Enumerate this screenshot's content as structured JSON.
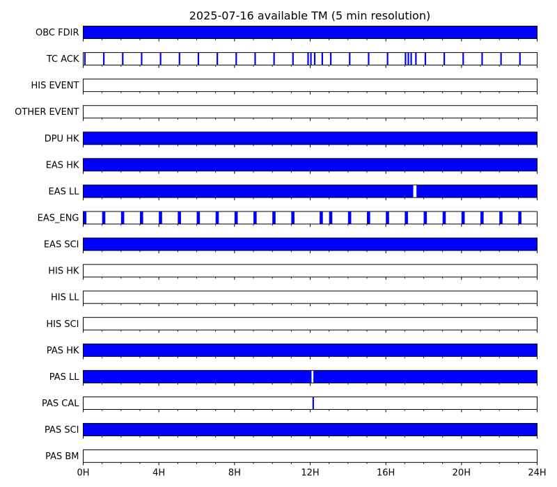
{
  "chart_data": {
    "type": "timeline",
    "title": "2025-07-16 available TM (5 min resolution)",
    "x_unit": "hours",
    "xlim": [
      0,
      24
    ],
    "x_ticks": [
      {
        "value": 0,
        "label": "0H"
      },
      {
        "value": 4,
        "label": "4H"
      },
      {
        "value": 8,
        "label": "8H"
      },
      {
        "value": 12,
        "label": "12H"
      },
      {
        "value": 16,
        "label": "16H"
      },
      {
        "value": 20,
        "label": "20H"
      },
      {
        "value": 24,
        "label": "24H"
      }
    ],
    "minor_tick_step": 1,
    "bar_color": "#0000ff",
    "gap_color": "#ffffff",
    "rows": [
      {
        "label": "OBC FDIR",
        "intervals": [
          [
            0,
            24
          ]
        ]
      },
      {
        "label": "TC ACK",
        "intervals": [
          [
            0.05,
            0.13
          ],
          [
            1.05,
            1.13
          ],
          [
            2.05,
            2.13
          ],
          [
            3.05,
            3.13
          ],
          [
            4.05,
            4.13
          ],
          [
            5.05,
            5.13
          ],
          [
            6.05,
            6.13
          ],
          [
            7.05,
            7.13
          ],
          [
            8.05,
            8.13
          ],
          [
            9.05,
            9.13
          ],
          [
            10.05,
            10.13
          ],
          [
            11.05,
            11.13
          ],
          [
            11.85,
            11.93
          ],
          [
            12.0,
            12.08
          ],
          [
            12.2,
            12.28
          ],
          [
            12.6,
            12.68
          ],
          [
            13.05,
            13.13
          ],
          [
            14.05,
            14.13
          ],
          [
            15.05,
            15.13
          ],
          [
            16.05,
            16.13
          ],
          [
            17.0,
            17.08
          ],
          [
            17.15,
            17.23
          ],
          [
            17.3,
            17.38
          ],
          [
            17.55,
            17.63
          ],
          [
            18.05,
            18.13
          ],
          [
            19.05,
            19.13
          ],
          [
            20.05,
            20.13
          ],
          [
            21.05,
            21.13
          ],
          [
            22.05,
            22.13
          ],
          [
            23.05,
            23.13
          ]
        ]
      },
      {
        "label": "HIS EVENT",
        "intervals": []
      },
      {
        "label": "OTHER EVENT",
        "intervals": []
      },
      {
        "label": "DPU HK",
        "intervals": [
          [
            0,
            24
          ]
        ]
      },
      {
        "label": "EAS HK",
        "intervals": [
          [
            0,
            24
          ]
        ]
      },
      {
        "label": "EAS LL",
        "intervals": [
          [
            0,
            17.45
          ],
          [
            17.62,
            24
          ]
        ]
      },
      {
        "label": "EAS_ENG",
        "intervals": [
          [
            0.0,
            0.17
          ],
          [
            1.0,
            1.17
          ],
          [
            2.0,
            2.17
          ],
          [
            3.0,
            3.17
          ],
          [
            4.0,
            4.17
          ],
          [
            5.0,
            5.17
          ],
          [
            6.0,
            6.17
          ],
          [
            7.0,
            7.17
          ],
          [
            8.0,
            8.17
          ],
          [
            9.0,
            9.17
          ],
          [
            10.0,
            10.17
          ],
          [
            11.0,
            11.17
          ],
          [
            12.5,
            12.67
          ],
          [
            13.0,
            13.17
          ],
          [
            14.0,
            14.17
          ],
          [
            15.0,
            15.17
          ],
          [
            16.0,
            16.17
          ],
          [
            17.0,
            17.17
          ],
          [
            18.0,
            18.17
          ],
          [
            19.0,
            19.17
          ],
          [
            20.0,
            20.17
          ],
          [
            21.0,
            21.17
          ],
          [
            22.0,
            22.17
          ],
          [
            23.0,
            23.17
          ]
        ]
      },
      {
        "label": "EAS SCI",
        "intervals": [
          [
            0,
            24
          ]
        ]
      },
      {
        "label": "HIS HK",
        "intervals": []
      },
      {
        "label": "HIS LL",
        "intervals": []
      },
      {
        "label": "HIS SCI",
        "intervals": []
      },
      {
        "label": "PAS HK",
        "intervals": [
          [
            0,
            24
          ]
        ]
      },
      {
        "label": "PAS LL",
        "intervals": [
          [
            0,
            12.07
          ],
          [
            12.17,
            24
          ]
        ]
      },
      {
        "label": "PAS CAL",
        "intervals": [
          [
            12.12,
            12.2
          ]
        ]
      },
      {
        "label": "PAS SCI",
        "intervals": [
          [
            0,
            24
          ]
        ]
      },
      {
        "label": "PAS BM",
        "intervals": []
      }
    ]
  }
}
